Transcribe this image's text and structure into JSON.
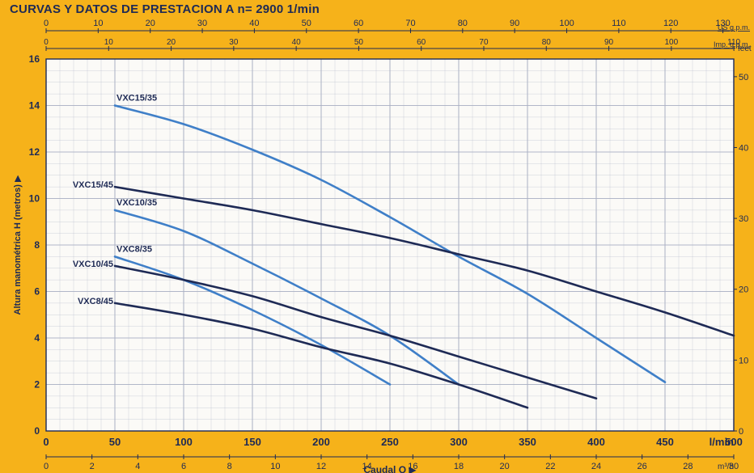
{
  "title": "CURVAS Y DATOS DE PRESTACION A n= 2900  1/min",
  "colors": {
    "background": "#f6b21a",
    "plot_bg": "#fbfaf7",
    "grid": "#aab0c4",
    "axis_text": "#1e2a55",
    "series_light": "#3f7fc8",
    "series_dark": "#1e2a55"
  },
  "axes": {
    "y_label": "Altura manométrica  H  (metros)",
    "y_ticks": [
      "0",
      "2",
      "4",
      "6",
      "8",
      "10",
      "12",
      "14",
      "16"
    ],
    "feet_unit": "feet",
    "feet_ticks": [
      "0",
      "10",
      "20",
      "30",
      "40",
      "50"
    ],
    "x_lmin_unit": "l/min",
    "x_lmin_ticks": [
      "0",
      "50",
      "100",
      "150",
      "200",
      "250",
      "300",
      "350",
      "400",
      "450",
      "500"
    ],
    "x_m3h_label": "Caudal  Q",
    "x_m3h_unit": "m³/h",
    "x_m3h_ticks": [
      "0",
      "2",
      "4",
      "6",
      "8",
      "10",
      "12",
      "14",
      "16",
      "18",
      "20",
      "22",
      "24",
      "26",
      "28",
      "30"
    ],
    "us_gpm_unit": "US g.p.m.",
    "us_gpm_ticks": [
      "0",
      "10",
      "20",
      "30",
      "40",
      "50",
      "60",
      "70",
      "80",
      "90",
      "100",
      "110",
      "120",
      "130"
    ],
    "imp_gpm_unit": "Imp. g.p.m.",
    "imp_gpm_ticks": [
      "0",
      "10",
      "20",
      "30",
      "40",
      "50",
      "60",
      "70",
      "80",
      "90",
      "100",
      "110"
    ]
  },
  "chart_data": {
    "type": "line",
    "title": "CURVAS Y DATOS DE PRESTACION A n= 2900  1/min",
    "xlabel": "Caudal Q",
    "ylabel": "Altura manométrica H (metros)",
    "x_unit": "l/min",
    "xlim": [
      0,
      500
    ],
    "ylim": [
      0,
      16
    ],
    "grid": true,
    "series": [
      {
        "name": "VXC15/35",
        "tone": "light",
        "x": [
          50,
          100,
          150,
          200,
          250,
          300,
          350,
          400,
          450
        ],
        "y": [
          14,
          13.2,
          12.1,
          10.8,
          9.2,
          7.5,
          5.9,
          4.0,
          2.1
        ]
      },
      {
        "name": "VXC15/45",
        "tone": "dark",
        "x": [
          50,
          100,
          150,
          200,
          250,
          300,
          350,
          400,
          450,
          500
        ],
        "y": [
          10.5,
          10.0,
          9.5,
          8.9,
          8.3,
          7.6,
          6.9,
          6.0,
          5.1,
          4.1
        ]
      },
      {
        "name": "VXC10/35",
        "tone": "light",
        "x": [
          50,
          100,
          150,
          200,
          250,
          300
        ],
        "y": [
          9.5,
          8.6,
          7.2,
          5.7,
          4.1,
          2.0
        ]
      },
      {
        "name": "VXC8/35",
        "tone": "light",
        "x": [
          50,
          100,
          150,
          200,
          250
        ],
        "y": [
          7.5,
          6.5,
          5.2,
          3.7,
          2.0
        ]
      },
      {
        "name": "VXC10/45",
        "tone": "dark",
        "x": [
          50,
          100,
          150,
          200,
          250,
          300,
          350,
          400
        ],
        "y": [
          7.1,
          6.5,
          5.8,
          4.9,
          4.1,
          3.2,
          2.3,
          1.4
        ]
      },
      {
        "name": "VXC8/45",
        "tone": "dark",
        "x": [
          50,
          100,
          150,
          200,
          250,
          300,
          350
        ],
        "y": [
          5.5,
          5.0,
          4.4,
          3.6,
          2.9,
          2.0,
          1.0
        ]
      }
    ]
  }
}
